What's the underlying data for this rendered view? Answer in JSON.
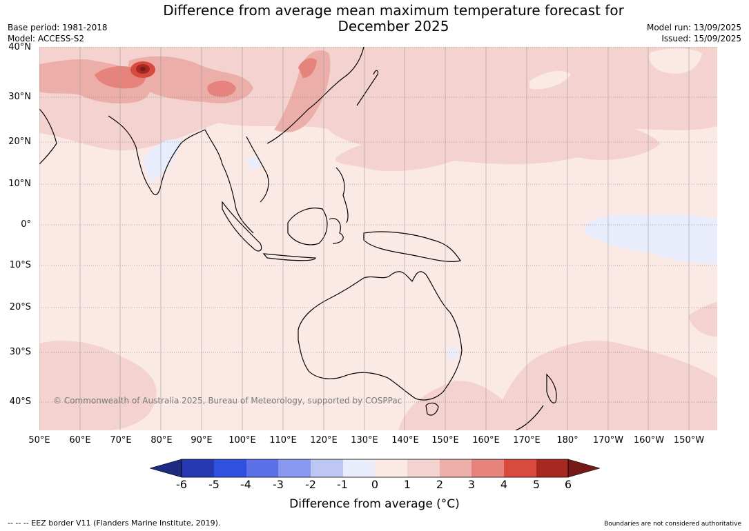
{
  "title_line1": "Difference from average mean maximum temperature forecast for",
  "title_line2": "December 2025",
  "meta_left": {
    "base_period": "Base period: 1981-2018",
    "model": "Model: ACCESS-S2"
  },
  "meta_right": {
    "model_run": "Model run: 13/09/2025",
    "issued": "Issued: 15/09/2025"
  },
  "map": {
    "lat_labels": [
      "40°N",
      "30°N",
      "20°N",
      "10°N",
      "0°",
      "10°S",
      "20°S",
      "30°S",
      "40°S"
    ],
    "lon_labels": [
      "50°E",
      "60°E",
      "70°E",
      "80°E",
      "90°E",
      "100°E",
      "110°E",
      "120°E",
      "130°E",
      "140°E",
      "150°E",
      "160°E",
      "170°E",
      "180°",
      "170°W",
      "160°W",
      "150°W"
    ],
    "copyright": "© Commonwealth of Australia 2025, Bureau of Meteorology, supported by COSPPac"
  },
  "colorbar": {
    "ticks": [
      "-6",
      "-5",
      "-4",
      "-3",
      "-2",
      "-1",
      "0",
      "1",
      "2",
      "3",
      "4",
      "5",
      "6"
    ],
    "colors": [
      "#1c2a80",
      "#2639b3",
      "#3050e0",
      "#5b70e6",
      "#8898ee",
      "#bec6f4",
      "#e8ecfb",
      "#fbe9e6",
      "#f4d2cf",
      "#ecaea9",
      "#e5837c",
      "#d94a3e",
      "#a62821",
      "#751a16"
    ],
    "label": "Difference from average (°C)"
  },
  "footer": {
    "eez": "--  --  -- EEZ border V11 (Flanders Marine Institute, 2019).",
    "boundaries": "Boundaries are not considered authoritative"
  }
}
